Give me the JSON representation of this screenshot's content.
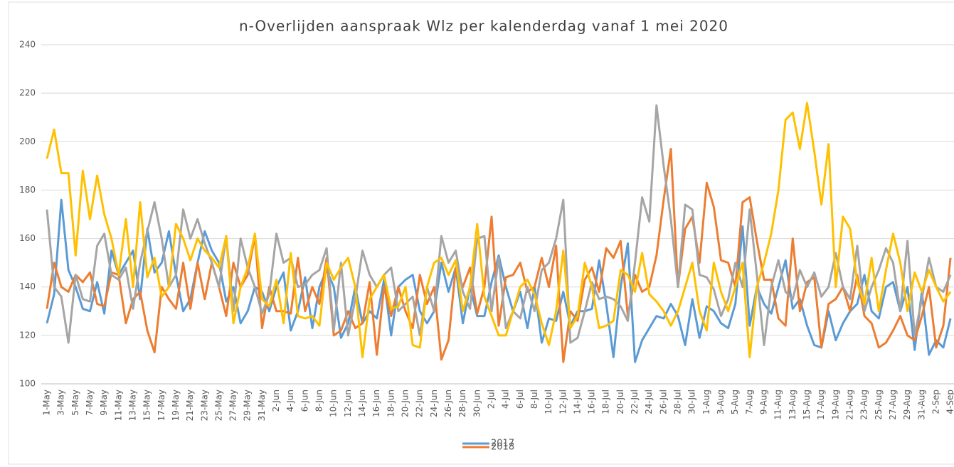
{
  "chart_data": {
    "type": "line",
    "title": "n-Overlijden aanspraak Wlz per kalenderdag vanaf 1 mei 2020",
    "categories": [
      "1-May",
      null,
      "3-May",
      null,
      "5-May",
      null,
      "7-May",
      null,
      "9-May",
      null,
      "11-May",
      null,
      "13-May",
      null,
      "15-May",
      null,
      "17-May",
      null,
      "19-May",
      null,
      "21-May",
      null,
      "23-May",
      null,
      "25-May",
      null,
      "27-May",
      null,
      "29-May",
      null,
      "31-May",
      null,
      "2-Jun",
      null,
      "4-Jun",
      null,
      "6-Jun",
      null,
      "8-Jun",
      null,
      "10-Jun",
      null,
      "12-Jun",
      null,
      "14-Jun",
      null,
      "16-Jun",
      null,
      "18-Jun",
      null,
      "20-Jun",
      null,
      "22-Jun",
      null,
      "24-Jun",
      null,
      "26-Jun",
      null,
      "28-Jun",
      null,
      "30-Jun",
      null,
      "2-Jul",
      null,
      "4-Jul",
      null,
      "6-Jul",
      null,
      "8-Jul",
      null,
      "10-Jul",
      null,
      "12-Jul",
      null,
      "14-Jul",
      null,
      "16-Jul",
      null,
      "18-Jul",
      null,
      "20-Jul",
      null,
      "22-Jul",
      null,
      "24-Jul",
      null,
      "26-Jul",
      null,
      "28-Jul",
      null,
      "30-Jul",
      null,
      "1-Aug",
      null,
      "3-Aug",
      null,
      "5-Aug",
      null,
      "7-Aug",
      null,
      "9-Aug",
      null,
      "11-Aug",
      null,
      "13-Aug",
      null,
      "15-Aug",
      null,
      "17-Aug",
      null,
      "19-Aug",
      null,
      "21-Aug",
      null,
      "23-Aug",
      null,
      "25-Aug",
      null,
      "27-Aug",
      null,
      "29-Aug",
      null,
      "31-Aug",
      null,
      "2-Sep",
      null,
      "4-Sep"
    ],
    "series": [
      {
        "name": "2017",
        "color": "#5b9bd5",
        "values": [
          125,
          137,
          176,
          147,
          140,
          131,
          130,
          142,
          129,
          155,
          145,
          150,
          155,
          135,
          164,
          146,
          150,
          163,
          145,
          130,
          135,
          150,
          163,
          155,
          150,
          134,
          140,
          125,
          130,
          140,
          138,
          130,
          140,
          146,
          122,
          130,
          144,
          123,
          140,
          147,
          140,
          119,
          125,
          140,
          125,
          130,
          127,
          143,
          120,
          140,
          143,
          145,
          130,
          125,
          130,
          150,
          138,
          148,
          125,
          140,
          128,
          128,
          142,
          153,
          140,
          130,
          138,
          123,
          140,
          117,
          127,
          126,
          138,
          124,
          130,
          130,
          131,
          151,
          133,
          111,
          140,
          158,
          109,
          118,
          123,
          128,
          127,
          133,
          128,
          116,
          135,
          119,
          132,
          130,
          125,
          123,
          133,
          165,
          124,
          140,
          133,
          129,
          140,
          151,
          131,
          135,
          124,
          116,
          115,
          130,
          118,
          125,
          130,
          133,
          145,
          130,
          127,
          140,
          142,
          130,
          140,
          114,
          138,
          112,
          118,
          115,
          127
        ]
      },
      {
        "name": "2018",
        "color": "#ed7d31",
        "values": [
          131,
          150,
          140,
          138,
          145,
          142,
          146,
          133,
          132,
          146,
          145,
          125,
          135,
          138,
          122,
          113,
          140,
          135,
          131,
          150,
          131,
          150,
          135,
          150,
          140,
          128,
          150,
          140,
          145,
          161,
          123,
          140,
          130,
          130,
          129,
          152,
          130,
          140,
          133,
          152,
          120,
          122,
          130,
          123,
          125,
          142,
          112,
          140,
          128,
          140,
          130,
          123,
          145,
          133,
          140,
          110,
          118,
          148,
          140,
          148,
          129,
          140,
          169,
          124,
          144,
          145,
          150,
          138,
          140,
          152,
          140,
          157,
          109,
          130,
          126,
          143,
          148,
          138,
          156,
          152,
          159,
          128,
          145,
          138,
          140,
          153,
          176,
          197,
          140,
          164,
          169,
          150,
          183,
          173,
          151,
          150,
          140,
          175,
          177,
          159,
          143,
          143,
          127,
          124,
          160,
          130,
          142,
          144,
          115,
          133,
          135,
          140,
          130,
          145,
          128,
          125,
          115,
          117,
          122,
          128,
          120,
          118,
          128,
          140,
          115,
          124,
          152
        ]
      },
      {
        "color": "#a5a5a5",
        "values": [
          172,
          140,
          136,
          117,
          145,
          135,
          134,
          157,
          162,
          145,
          143,
          148,
          131,
          150,
          163,
          175,
          160,
          140,
          145,
          172,
          160,
          168,
          158,
          150,
          140,
          161,
          130,
          160,
          148,
          140,
          129,
          137,
          162,
          150,
          152,
          140,
          141,
          145,
          147,
          156,
          122,
          150,
          120,
          135,
          155,
          145,
          140,
          145,
          148,
          130,
          133,
          136,
          120,
          140,
          130,
          161,
          150,
          155,
          138,
          131,
          160,
          161,
          130,
          152,
          123,
          130,
          127,
          140,
          130,
          147,
          150,
          160,
          176,
          117,
          119,
          130,
          142,
          135,
          136,
          135,
          132,
          126,
          150,
          177,
          167,
          215,
          190,
          168,
          140,
          174,
          172,
          145,
          144,
          139,
          128,
          135,
          150,
          140,
          172,
          145,
          116,
          140,
          151,
          138,
          135,
          147,
          140,
          146,
          136,
          140,
          154,
          140,
          135,
          157,
          130,
          140,
          147,
          156,
          150,
          130,
          159,
          120,
          135,
          152,
          140,
          138,
          145
        ]
      },
      {
        "color": "#ffc000",
        "values": [
          193,
          205,
          187,
          187,
          153,
          188,
          168,
          186,
          170,
          160,
          145,
          168,
          140,
          175,
          144,
          152,
          136,
          140,
          166,
          160,
          151,
          160,
          155,
          152,
          148,
          161,
          125,
          140,
          148,
          162,
          135,
          132,
          143,
          125,
          154,
          128,
          127,
          128,
          124,
          150,
          143,
          148,
          152,
          140,
          111,
          135,
          140,
          145,
          131,
          132,
          140,
          116,
          115,
          140,
          150,
          152,
          145,
          151,
          130,
          140,
          166,
          136,
          128,
          120,
          120,
          130,
          140,
          143,
          137,
          125,
          116,
          130,
          155,
          123,
          128,
          150,
          140,
          123,
          124,
          126,
          147,
          145,
          138,
          154,
          137,
          134,
          130,
          124,
          130,
          140,
          150,
          130,
          122,
          150,
          138,
          130,
          140,
          150,
          111,
          140,
          150,
          162,
          180,
          209,
          212,
          197,
          216,
          196,
          174,
          199,
          140,
          169,
          164,
          142,
          133,
          152,
          130,
          147,
          162,
          150,
          130,
          146,
          138,
          147,
          140,
          134,
          138
        ]
      }
    ],
    "ylim": [
      100,
      240
    ],
    "yticks": [
      100,
      120,
      140,
      160,
      180,
      200,
      220,
      240
    ],
    "grid": true
  }
}
